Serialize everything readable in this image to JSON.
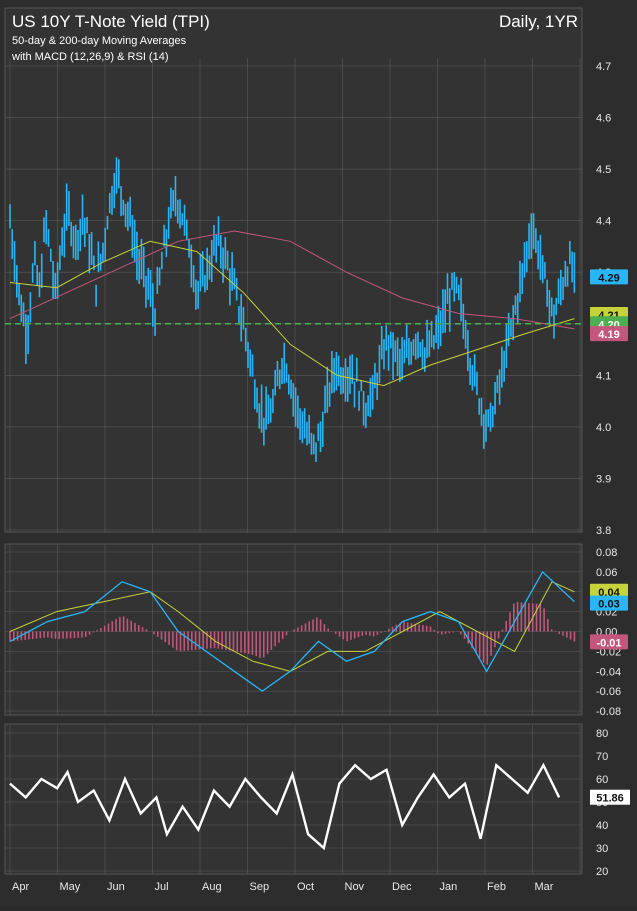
{
  "header": {
    "title": "US 10Y T-Note Yield (TPI)",
    "subtitle_line1": "50-day & 200-day Moving Averages",
    "subtitle_line2": "with MACD (12,26,9) & RSI (14)",
    "period": "Daily, 1YR"
  },
  "colors": {
    "background": "#2d2d2d",
    "panel": "#333333",
    "grid": "#5a5a5a",
    "price_bars": "#29b6f6",
    "ma50": "#c6d43a",
    "ma200": "#c2567c",
    "support_line": "#4caf50",
    "macd_line": "#29b6f6",
    "signal_line": "#c6d43a",
    "histogram": "#c2567c",
    "rsi_line": "#ffffff",
    "badge_price": "#29b6f6",
    "badge_ma50": "#c6d43a",
    "badge_support": "#4caf50",
    "badge_ma200": "#c2567c"
  },
  "chart_data": [
    {
      "type": "ohlc",
      "name": "price",
      "ylim": [
        3.8,
        4.7
      ],
      "yticks": [
        "3.8",
        "3.9",
        "4.0",
        "4.1",
        "4.2",
        "4.3",
        "4.4",
        "4.5",
        "4.6",
        "4.7"
      ],
      "x_months": [
        "Apr",
        "May",
        "Jun",
        "Jul",
        "Aug",
        "Sep",
        "Oct",
        "Nov",
        "Dec",
        "Jan",
        "Feb",
        "Mar"
      ],
      "close_path": [
        [
          0,
          4.4
        ],
        [
          0.05,
          4.33
        ],
        [
          0.11,
          4.24
        ],
        [
          0.18,
          4.18
        ],
        [
          0.26,
          4.32
        ],
        [
          0.32,
          4.26
        ],
        [
          0.38,
          4.4
        ],
        [
          0.44,
          4.33
        ],
        [
          0.48,
          4.25
        ],
        [
          0.55,
          4.35
        ],
        [
          0.62,
          4.42
        ],
        [
          0.7,
          4.36
        ],
        [
          0.78,
          4.41
        ],
        [
          0.86,
          4.34
        ],
        [
          0.92,
          4.28
        ],
        [
          1.0,
          4.35
        ],
        [
          1.06,
          4.43
        ],
        [
          1.14,
          4.49
        ],
        [
          1.22,
          4.44
        ],
        [
          1.3,
          4.39
        ],
        [
          1.36,
          4.33
        ],
        [
          1.42,
          4.3
        ],
        [
          1.48,
          4.27
        ],
        [
          1.55,
          4.22
        ],
        [
          1.62,
          4.31
        ],
        [
          1.7,
          4.4
        ],
        [
          1.78,
          4.45
        ],
        [
          1.86,
          4.4
        ],
        [
          1.94,
          4.33
        ],
        [
          2.0,
          4.26
        ],
        [
          2.06,
          4.28
        ],
        [
          2.14,
          4.32
        ],
        [
          2.22,
          4.36
        ],
        [
          2.3,
          4.33
        ],
        [
          2.38,
          4.28
        ],
        [
          2.44,
          4.24
        ],
        [
          2.52,
          4.18
        ],
        [
          2.6,
          4.1
        ],
        [
          2.68,
          4.03
        ],
        [
          2.76,
          4.01
        ],
        [
          2.84,
          4.06
        ],
        [
          2.92,
          4.14
        ],
        [
          3.0,
          4.09
        ],
        [
          3.08,
          4.03
        ],
        [
          3.16,
          3.99
        ],
        [
          3.24,
          3.96
        ],
        [
          3.32,
          3.98
        ],
        [
          3.4,
          4.06
        ],
        [
          3.48,
          4.12
        ],
        [
          3.56,
          4.1
        ],
        [
          3.64,
          4.11
        ],
        [
          3.72,
          4.08
        ],
        [
          3.8,
          4.04
        ],
        [
          3.88,
          4.06
        ],
        [
          3.96,
          4.12
        ],
        [
          4.04,
          4.17
        ],
        [
          4.12,
          4.14
        ],
        [
          4.2,
          4.12
        ],
        [
          4.28,
          4.15
        ],
        [
          4.36,
          4.18
        ],
        [
          4.44,
          4.14
        ],
        [
          4.52,
          4.16
        ],
        [
          4.6,
          4.19
        ],
        [
          4.68,
          4.24
        ],
        [
          4.76,
          4.27
        ],
        [
          4.82,
          4.24
        ],
        [
          4.88,
          4.18
        ],
        [
          4.94,
          4.12
        ],
        [
          5.0,
          4.07
        ],
        [
          5.06,
          4.03
        ],
        [
          5.12,
          4.0
        ],
        [
          5.18,
          4.04
        ],
        [
          5.26,
          4.1
        ],
        [
          5.34,
          4.17
        ],
        [
          5.42,
          4.24
        ],
        [
          5.5,
          4.31
        ],
        [
          5.58,
          4.39
        ],
        [
          5.66,
          4.34
        ],
        [
          5.74,
          4.27
        ],
        [
          5.82,
          4.21
        ],
        [
          5.9,
          4.27
        ],
        [
          5.98,
          4.32
        ],
        [
          6.04,
          4.29
        ]
      ],
      "ma50_path": [
        [
          0,
          4.28
        ],
        [
          0.5,
          4.27
        ],
        [
          1.0,
          4.32
        ],
        [
          1.5,
          4.36
        ],
        [
          2.0,
          4.34
        ],
        [
          2.5,
          4.26
        ],
        [
          3.0,
          4.16
        ],
        [
          3.5,
          4.1
        ],
        [
          4.0,
          4.08
        ],
        [
          4.5,
          4.12
        ],
        [
          5.0,
          4.15
        ],
        [
          5.5,
          4.18
        ],
        [
          6.04,
          4.21
        ]
      ],
      "ma200_path": [
        [
          0,
          4.21
        ],
        [
          0.6,
          4.26
        ],
        [
          1.2,
          4.31
        ],
        [
          1.8,
          4.36
        ],
        [
          2.4,
          4.38
        ],
        [
          3.0,
          4.36
        ],
        [
          3.6,
          4.3
        ],
        [
          4.2,
          4.25
        ],
        [
          4.8,
          4.22
        ],
        [
          5.4,
          4.21
        ],
        [
          6.04,
          4.19
        ]
      ],
      "support_level": 4.2,
      "labels": {
        "price": "4.29",
        "ma50": "4.21",
        "support": "4.20",
        "ma200": "4.19"
      }
    },
    {
      "type": "line+bar",
      "name": "MACD (12,26,9)",
      "ylim": [
        -0.08,
        0.08
      ],
      "yticks": [
        "0.08",
        "0.06",
        "0.04",
        "0.02",
        "0.00",
        "-0.02",
        "-0.04",
        "-0.06",
        "-0.08"
      ],
      "macd_path": [
        [
          0,
          -0.01
        ],
        [
          0.4,
          0.01
        ],
        [
          0.8,
          0.02
        ],
        [
          1.2,
          0.05
        ],
        [
          1.5,
          0.04
        ],
        [
          1.8,
          0.0
        ],
        [
          2.1,
          -0.02
        ],
        [
          2.4,
          -0.04
        ],
        [
          2.7,
          -0.06
        ],
        [
          3.0,
          -0.04
        ],
        [
          3.3,
          -0.01
        ],
        [
          3.6,
          -0.03
        ],
        [
          3.9,
          -0.02
        ],
        [
          4.2,
          0.01
        ],
        [
          4.5,
          0.02
        ],
        [
          4.8,
          0.01
        ],
        [
          5.1,
          -0.04
        ],
        [
          5.4,
          0.01
        ],
        [
          5.7,
          0.06
        ],
        [
          6.04,
          0.03
        ]
      ],
      "signal_path": [
        [
          0,
          0.0
        ],
        [
          0.5,
          0.02
        ],
        [
          1.0,
          0.03
        ],
        [
          1.5,
          0.04
        ],
        [
          1.8,
          0.02
        ],
        [
          2.2,
          -0.01
        ],
        [
          2.6,
          -0.03
        ],
        [
          3.0,
          -0.04
        ],
        [
          3.4,
          -0.02
        ],
        [
          3.8,
          -0.02
        ],
        [
          4.2,
          0.0
        ],
        [
          4.6,
          0.02
        ],
        [
          5.0,
          0.0
        ],
        [
          5.4,
          -0.02
        ],
        [
          5.8,
          0.05
        ],
        [
          6.04,
          0.04
        ]
      ],
      "labels": {
        "signal": "0.04",
        "macd": "0.03",
        "histogram": "-0.01"
      }
    },
    {
      "type": "line",
      "name": "RSI (14)",
      "ylim": [
        20,
        80
      ],
      "yticks": [
        "80",
        "70",
        "60",
        "50",
        "40",
        "30",
        "20"
      ],
      "rsi_path": [
        [
          0,
          58
        ],
        [
          0.3,
          52
        ],
        [
          0.6,
          60
        ],
        [
          0.9,
          56
        ],
        [
          1.1,
          63
        ],
        [
          1.3,
          50
        ],
        [
          1.6,
          55
        ],
        [
          1.9,
          42
        ],
        [
          2.2,
          60
        ],
        [
          2.5,
          45
        ],
        [
          2.8,
          52
        ],
        [
          3.0,
          36
        ],
        [
          3.3,
          48
        ],
        [
          3.6,
          38
        ],
        [
          3.9,
          55
        ],
        [
          4.2,
          48
        ],
        [
          4.5,
          60
        ],
        [
          4.8,
          52
        ],
        [
          5.1,
          45
        ],
        [
          5.4,
          62
        ],
        [
          5.7,
          36
        ],
        [
          6.0,
          30
        ],
        [
          6.3,
          58
        ],
        [
          6.6,
          66
        ],
        [
          6.9,
          60
        ],
        [
          7.2,
          64
        ],
        [
          7.5,
          40
        ],
        [
          7.8,
          52
        ],
        [
          8.1,
          62
        ],
        [
          8.4,
          52
        ],
        [
          8.7,
          58
        ],
        [
          9.0,
          34
        ],
        [
          9.3,
          66
        ],
        [
          9.6,
          60
        ],
        [
          9.9,
          54
        ],
        [
          10.2,
          66
        ],
        [
          10.5,
          52
        ]
      ],
      "label": "51.86"
    }
  ]
}
